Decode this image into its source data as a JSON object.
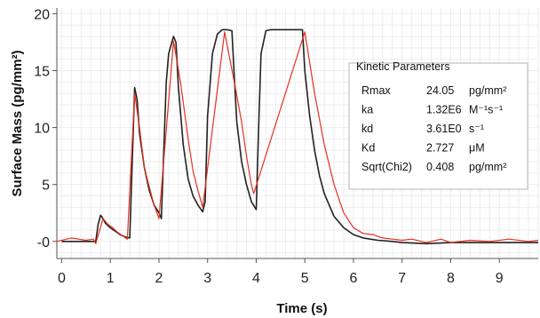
{
  "chart_data": {
    "type": "line",
    "xlabel": "Time (s)",
    "ylabel": "Surface Mass (pg/mm²)",
    "xlim": [
      -0.1,
      9.8
    ],
    "ylim": [
      -1.5,
      20.5
    ],
    "x_ticks": [
      {
        "value": 0,
        "label": "0"
      },
      {
        "value": 1,
        "label": "1"
      },
      {
        "value": 2,
        "label": "2"
      },
      {
        "value": 3,
        "label": "3"
      },
      {
        "value": 4,
        "label": "4"
      },
      {
        "value": 5,
        "label": "5"
      },
      {
        "value": 6,
        "label": "6"
      },
      {
        "value": 7,
        "label": "7"
      },
      {
        "value": 8,
        "label": "8"
      },
      {
        "value": 9,
        "label": "9"
      }
    ],
    "y_ticks": [
      {
        "value": 0,
        "label": "-0"
      },
      {
        "value": 5,
        "label": "5"
      },
      {
        "value": 10,
        "label": "10"
      },
      {
        "value": 15,
        "label": "15"
      },
      {
        "value": 20,
        "label": "20"
      }
    ],
    "grid": true,
    "series": [
      {
        "color": "#222222",
        "x": [
          0.0,
          0.7,
          0.75,
          0.8,
          0.85,
          0.9,
          1.0,
          1.1,
          1.2,
          1.3,
          1.4,
          1.45,
          1.5,
          1.55,
          1.6,
          1.7,
          1.8,
          1.9,
          2.0,
          2.05,
          2.1,
          2.15,
          2.2,
          2.3,
          2.35,
          2.4,
          2.5,
          2.6,
          2.7,
          2.8,
          2.9,
          2.95,
          3.0,
          3.1,
          3.2,
          3.3,
          3.4,
          3.5,
          3.55,
          3.6,
          3.7,
          3.8,
          3.9,
          4.0,
          4.05,
          4.1,
          4.2,
          4.3,
          4.5,
          4.7,
          4.95,
          5.0,
          5.1,
          5.2,
          5.3,
          5.4,
          5.6,
          5.8,
          6.0,
          6.2,
          6.5,
          6.8,
          7.0,
          7.5,
          8.0,
          9.0,
          9.8
        ],
        "values": [
          0.0,
          0.0,
          1.5,
          2.3,
          2.0,
          1.6,
          1.2,
          0.9,
          0.6,
          0.4,
          0.3,
          7.0,
          13.5,
          12.5,
          9.5,
          6.5,
          4.5,
          3.2,
          2.5,
          2.0,
          8.0,
          14.0,
          16.5,
          18.0,
          17.5,
          13.5,
          8.5,
          5.5,
          4.0,
          3.2,
          2.6,
          3.5,
          11.0,
          16.5,
          18.2,
          18.6,
          18.6,
          18.5,
          14.5,
          10.5,
          7.0,
          5.0,
          3.5,
          2.8,
          10.0,
          16.5,
          18.5,
          18.6,
          18.6,
          18.6,
          18.6,
          15.0,
          11.0,
          8.0,
          5.8,
          4.2,
          2.2,
          1.2,
          0.6,
          0.3,
          0.1,
          0.0,
          -0.1,
          -0.2,
          -0.1,
          -0.1,
          -0.1
        ]
      },
      {
        "color": "#e53021",
        "x": [
          -0.1,
          0.2,
          0.5,
          0.65,
          0.7,
          0.85,
          0.95,
          1.05,
          1.15,
          1.25,
          1.35,
          1.5,
          1.6,
          1.7,
          1.8,
          1.9,
          2.0,
          2.3,
          2.45,
          2.6,
          2.7,
          2.8,
          2.9,
          3.35,
          3.55,
          3.7,
          3.8,
          3.9,
          3.95,
          5.0,
          5.2,
          5.4,
          5.6,
          5.8,
          6.0,
          6.2,
          6.4,
          6.6,
          6.8,
          7.0,
          7.2,
          7.5,
          7.8,
          8.0,
          8.4,
          8.8,
          9.2,
          9.6,
          9.8
        ],
        "values": [
          0.0,
          0.3,
          0.1,
          0.2,
          -0.2,
          2.0,
          1.5,
          1.2,
          0.8,
          0.5,
          0.2,
          13.0,
          10.0,
          6.5,
          4.8,
          3.2,
          2.0,
          17.6,
          13.8,
          9.0,
          6.2,
          4.5,
          3.0,
          18.4,
          14.0,
          10.5,
          7.5,
          5.0,
          4.2,
          18.4,
          13.0,
          8.5,
          5.0,
          2.5,
          1.2,
          0.7,
          0.6,
          0.3,
          0.2,
          0.1,
          0.2,
          -0.1,
          0.2,
          -0.1,
          0.1,
          0.0,
          0.2,
          0.0,
          0.1
        ]
      }
    ]
  },
  "kinetic_panel": {
    "title": "Kinetic Parameters",
    "rows": [
      {
        "name": "Rmax",
        "value": "24.05",
        "unit": "pg/mm²"
      },
      {
        "name": "ka",
        "value": "1.32E6",
        "unit": "M⁻¹s⁻¹"
      },
      {
        "name": "kd",
        "value": "3.61E0",
        "unit": "s⁻¹"
      },
      {
        "name": "Kd",
        "value": "2.727",
        "unit": "μM"
      },
      {
        "name": "Sqrt(Chi2)",
        "value": "0.408",
        "unit": "pg/mm²"
      }
    ]
  }
}
